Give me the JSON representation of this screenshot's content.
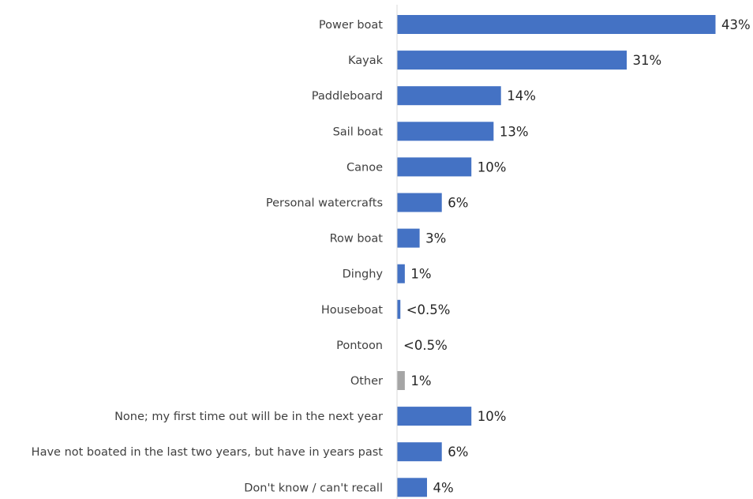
{
  "chart_data": {
    "type": "bar",
    "orientation": "horizontal",
    "categories": [
      "Power boat",
      "Kayak",
      "Paddleboard",
      "Sail boat",
      "Canoe",
      "Personal watercrafts",
      "Row boat",
      "Dinghy",
      "Houseboat",
      "Pontoon",
      "Other",
      "None; my first time out will be in the next year",
      "Have not boated in the last two years, but have in years past",
      "Don't know / can't recall"
    ],
    "values": [
      43,
      31,
      14,
      13,
      10,
      6,
      3,
      1,
      0.4,
      0,
      1,
      10,
      6,
      4
    ],
    "data_labels": [
      "43%",
      "31%",
      "14%",
      "13%",
      "10%",
      "6%",
      "3%",
      "1%",
      "<0.5%",
      "<0.5%",
      "1%",
      "10%",
      "6%",
      "4%"
    ],
    "bar_colors": [
      "#4472C4",
      "#4472C4",
      "#4472C4",
      "#4472C4",
      "#4472C4",
      "#4472C4",
      "#4472C4",
      "#4472C4",
      "#4472C4",
      "#4472C4",
      "#A5A5A5",
      "#4472C4",
      "#4472C4",
      "#4472C4"
    ],
    "xlim": [
      0,
      43
    ],
    "title": "",
    "xlabel": "",
    "ylabel": "",
    "grid": false,
    "legend": "none",
    "axis_line_color": "#D9D9D9"
  }
}
